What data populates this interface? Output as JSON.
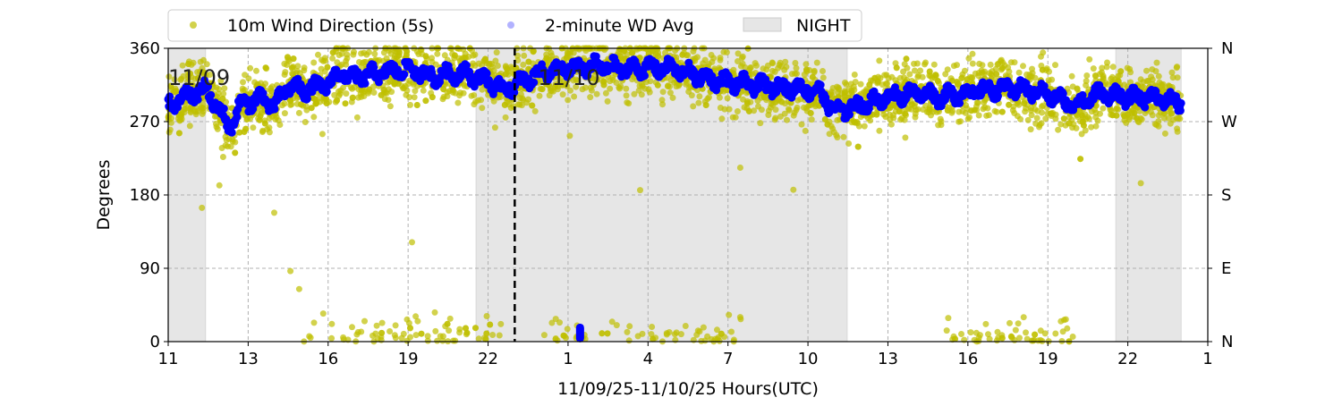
{
  "chart_data": {
    "type": "scatter",
    "xlabel": "11/09/25-11/10/25  Hours(UTC)",
    "ylabel": "Degrees",
    "xlim": [
      10,
      49
    ],
    "ylim": [
      0,
      360
    ],
    "grid": true,
    "legend_placement": "top-center-outside",
    "x_ticks": [
      {
        "value": 10,
        "label": "11"
      },
      {
        "value": 13,
        "label": "13"
      },
      {
        "value": 16,
        "label": "16"
      },
      {
        "value": 19,
        "label": "19"
      },
      {
        "value": 22,
        "label": "22"
      },
      {
        "value": 25,
        "label": "1"
      },
      {
        "value": 28,
        "label": "4"
      },
      {
        "value": 31,
        "label": "7"
      },
      {
        "value": 34,
        "label": "10"
      },
      {
        "value": 37,
        "label": "13"
      },
      {
        "value": 40,
        "label": "16"
      },
      {
        "value": 43,
        "label": "19"
      },
      {
        "value": 46,
        "label": "22"
      },
      {
        "value": 49,
        "label": "1"
      }
    ],
    "y_ticks": [
      0,
      90,
      180,
      270,
      360
    ],
    "y_right_ticks": [
      {
        "value": 0,
        "label": "N"
      },
      {
        "value": 90,
        "label": "E"
      },
      {
        "value": 180,
        "label": "S"
      },
      {
        "value": 270,
        "label": "W"
      },
      {
        "value": 360,
        "label": "N"
      }
    ],
    "day_labels": [
      {
        "x": 10,
        "label": "11/09"
      },
      {
        "x": 23,
        "label": "11/10"
      }
    ],
    "day_boundary_x": 23,
    "night_periods": [
      [
        10,
        11.4
      ],
      [
        21.55,
        35.47
      ],
      [
        45.55,
        48
      ]
    ],
    "legend": [
      "10m Wind Direction (5s)",
      "2-minute WD Avg",
      "NIGHT"
    ],
    "colors": {
      "raw": "#bfbf00",
      "avg": "#0000ff",
      "night": "#e6e6e6"
    },
    "series": [
      {
        "name": "2-minute WD Avg",
        "trend": [
          [
            10,
            290
          ],
          [
            11,
            305
          ],
          [
            11.4,
            310
          ],
          [
            12,
            280
          ],
          [
            12.3,
            262
          ],
          [
            12.7,
            290
          ],
          [
            13.5,
            300
          ],
          [
            14,
            288
          ],
          [
            14.5,
            315
          ],
          [
            15,
            308
          ],
          [
            16,
            316
          ],
          [
            16.5,
            330
          ],
          [
            17,
            324
          ],
          [
            18,
            330
          ],
          [
            19,
            335
          ],
          [
            20,
            325
          ],
          [
            21,
            330
          ],
          [
            22,
            320
          ],
          [
            22.5,
            310
          ],
          [
            23,
            315
          ],
          [
            24,
            330
          ],
          [
            25,
            335
          ],
          [
            26,
            338
          ],
          [
            27,
            335
          ],
          [
            28,
            336
          ],
          [
            29,
            335
          ],
          [
            30,
            325
          ],
          [
            31,
            318
          ],
          [
            32,
            315
          ],
          [
            33,
            312
          ],
          [
            34,
            310
          ],
          [
            34.5,
            305
          ],
          [
            35,
            282
          ],
          [
            36,
            290
          ],
          [
            37,
            300
          ],
          [
            38,
            306
          ],
          [
            39,
            300
          ],
          [
            40,
            306
          ],
          [
            41,
            310
          ],
          [
            42,
            310
          ],
          [
            43,
            304
          ],
          [
            44,
            290
          ],
          [
            45,
            305
          ],
          [
            46,
            300
          ],
          [
            47,
            300
          ],
          [
            48,
            292
          ]
        ]
      },
      {
        "name": "10m Wind Direction (5s)",
        "spread": 28,
        "wrap_regions": [
          [
            15,
            22.5
          ],
          [
            24,
            31.5
          ],
          [
            39,
            44
          ]
        ]
      }
    ]
  }
}
